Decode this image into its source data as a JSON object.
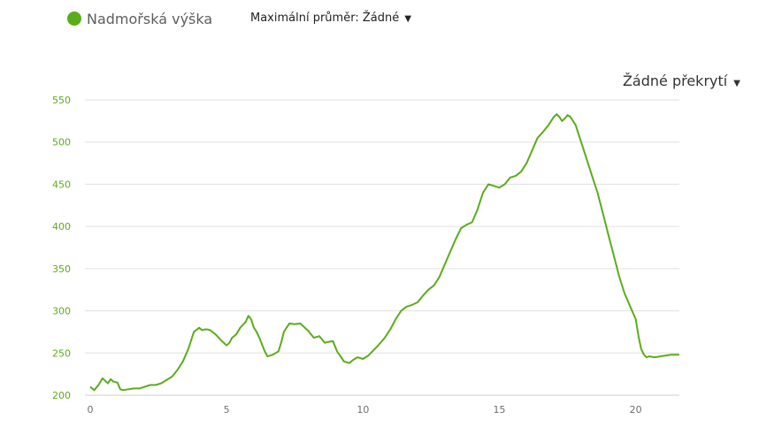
{
  "legend": {
    "label": "Nadmořská výška",
    "color": "#5aad1a"
  },
  "controls": {
    "avg_label": "Maximální průměr:",
    "avg_value": "Žádné",
    "overlay_value": "Žádné překrytí",
    "caret_icon": "caret-down-icon"
  },
  "chart_data": {
    "type": "line",
    "title": "",
    "xlabel": "",
    "ylabel": "",
    "xlim": [
      0,
      21.6
    ],
    "ylim": [
      200,
      550
    ],
    "x_ticks": [
      0,
      5,
      10,
      15,
      20
    ],
    "y_ticks": [
      200,
      250,
      300,
      350,
      400,
      450,
      500,
      550
    ],
    "grid": true,
    "line_color": "#5aad1a",
    "series": [
      {
        "name": "Nadmořská výška",
        "x": [
          0,
          0.15,
          0.3,
          0.45,
          0.55,
          0.65,
          0.75,
          0.85,
          1.0,
          1.1,
          1.2,
          1.4,
          1.6,
          1.8,
          2.0,
          2.2,
          2.4,
          2.6,
          2.8,
          3.0,
          3.2,
          3.4,
          3.6,
          3.8,
          4.0,
          4.1,
          4.2,
          4.3,
          4.4,
          4.6,
          4.8,
          5.0,
          5.1,
          5.2,
          5.35,
          5.5,
          5.7,
          5.8,
          5.9,
          6.0,
          6.1,
          6.2,
          6.4,
          6.5,
          6.7,
          6.9,
          7.0,
          7.1,
          7.3,
          7.5,
          7.7,
          7.8,
          8.0,
          8.2,
          8.4,
          8.5,
          8.6,
          8.7,
          8.9,
          9.05,
          9.2,
          9.3,
          9.5,
          9.65,
          9.8,
          10.0,
          10.2,
          10.5,
          10.8,
          11.0,
          11.2,
          11.4,
          11.6,
          11.8,
          12.0,
          12.2,
          12.4,
          12.6,
          12.8,
          13.0,
          13.2,
          13.4,
          13.6,
          13.8,
          14.0,
          14.2,
          14.4,
          14.6,
          14.8,
          15.0,
          15.2,
          15.4,
          15.6,
          15.8,
          16.0,
          16.2,
          16.4,
          16.6,
          16.8,
          17.0,
          17.1,
          17.2,
          17.3,
          17.4,
          17.5,
          17.6,
          17.8,
          18.0,
          18.2,
          18.4,
          18.6,
          18.8,
          19.0,
          19.2,
          19.4,
          19.6,
          19.8,
          20.0,
          20.1,
          20.2,
          20.3,
          20.4,
          20.5,
          20.7,
          20.9,
          21.1,
          21.3,
          21.6
        ],
        "y": [
          210,
          206,
          212,
          220,
          217,
          214,
          219,
          216,
          215,
          207,
          206,
          207,
          208,
          208,
          210,
          212,
          212,
          214,
          218,
          222,
          230,
          240,
          255,
          275,
          280,
          277,
          278,
          278,
          277,
          272,
          265,
          259,
          262,
          268,
          272,
          280,
          287,
          294,
          290,
          280,
          275,
          268,
          252,
          246,
          248,
          252,
          262,
          275,
          285,
          284,
          285,
          282,
          276,
          268,
          270,
          266,
          262,
          263,
          264,
          252,
          245,
          240,
          238,
          242,
          245,
          243,
          247,
          257,
          268,
          278,
          290,
          300,
          305,
          307,
          310,
          318,
          325,
          330,
          340,
          355,
          370,
          385,
          398,
          402,
          405,
          420,
          440,
          450,
          448,
          446,
          450,
          458,
          460,
          465,
          475,
          490,
          505,
          512,
          520,
          530,
          533,
          530,
          525,
          528,
          532,
          530,
          520,
          500,
          480,
          460,
          440,
          415,
          390,
          365,
          340,
          320,
          305,
          290,
          270,
          255,
          248,
          245,
          246,
          245,
          246,
          247,
          248,
          248
        ]
      }
    ]
  }
}
